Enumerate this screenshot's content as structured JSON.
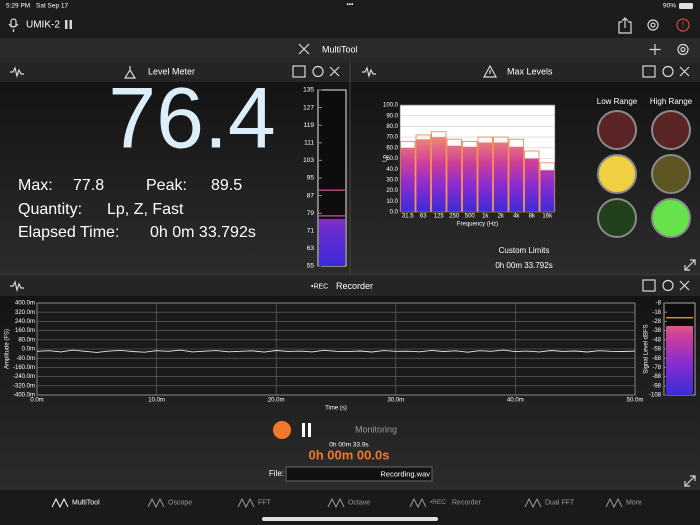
{
  "status_bar": {
    "time": "5:29 PM",
    "date": "Sat Sep 17",
    "battery": "90%"
  },
  "device": {
    "name": "UMIK-2"
  },
  "toolbar": {
    "title": "MultiTool"
  },
  "level_meter": {
    "title": "Level Meter",
    "level": 76.4,
    "max_label": "Max:",
    "max": 77.8,
    "peak_label": "Peak:",
    "peak": 89.5,
    "quantity_label": "Quantity:",
    "quantity": "Lp, Z, Fast",
    "elapsed_label": "Elapsed Time:",
    "elapsed": "0h 0m 33.792s",
    "scale": {
      "ylim": [
        55,
        135
      ],
      "yticks": [
        135,
        127,
        119,
        111,
        103,
        95,
        87,
        79,
        71,
        63,
        55
      ]
    }
  },
  "max_levels": {
    "title": "Max Levels",
    "chart": {
      "type": "bar",
      "y_label": "Lp",
      "x_label": "Frequency (Hz)",
      "categories": [
        "31.5",
        "63",
        "125",
        "250",
        "500",
        "1k",
        "2k",
        "4k",
        "8k",
        "16k"
      ],
      "values": [
        60,
        68,
        70,
        62,
        61,
        65,
        65,
        61,
        50,
        39
      ],
      "max_hold": [
        66,
        72,
        75,
        68,
        66,
        70,
        70,
        68,
        57,
        46
      ],
      "ylim": [
        0,
        100
      ],
      "yticks": [
        {
          "value": 0,
          "label": "0.0"
        },
        {
          "value": 10,
          "label": "10.0"
        },
        {
          "value": 20,
          "label": "20.0"
        },
        {
          "value": 30,
          "label": "30.0"
        },
        {
          "value": 40,
          "label": "40.0"
        },
        {
          "value": 50,
          "label": "50.0"
        },
        {
          "value": 60,
          "label": "60.0"
        },
        {
          "value": 70,
          "label": "70.0"
        },
        {
          "value": 80,
          "label": "80.0"
        },
        {
          "value": 90,
          "label": "90.0"
        },
        {
          "value": 100,
          "label": "100.0"
        }
      ]
    },
    "low_range": "Low Range",
    "high_range": "High Range",
    "custom_limits": "Custom Limits",
    "elapsed": "0h 00m 33.792s"
  },
  "recorder": {
    "rec": "•REC",
    "title": "Recorder",
    "chart": {
      "type": "line",
      "y_label": "Amplitude (FS)",
      "x_label": "Time (s)",
      "x": [
        0,
        1,
        2,
        3,
        4,
        5,
        6,
        7,
        8,
        9,
        10,
        11,
        12,
        13,
        14,
        15,
        16,
        17,
        18,
        19,
        20,
        21,
        22,
        23,
        24,
        25,
        26,
        27,
        28,
        29,
        30,
        31,
        32,
        33,
        34,
        35,
        36,
        37,
        38,
        39,
        40,
        41,
        42,
        43,
        44,
        45,
        46,
        47,
        48,
        49,
        50
      ],
      "values": [
        -0.02,
        -0.015,
        -0.025,
        -0.01,
        -0.02,
        -0.03,
        -0.018,
        -0.012,
        -0.022,
        -0.028,
        -0.015,
        -0.02,
        -0.01,
        -0.025,
        -0.019,
        -0.014,
        -0.024,
        -0.02,
        -0.016,
        -0.027,
        -0.013,
        -0.021,
        -0.018,
        -0.025,
        -0.011,
        -0.02,
        -0.023,
        -0.017,
        -0.026,
        -0.014,
        -0.02,
        -0.019,
        -0.024,
        -0.012,
        -0.022,
        -0.016,
        -0.028,
        -0.015,
        -0.02,
        -0.01,
        -0.023,
        -0.018,
        -0.025,
        -0.013,
        -0.021,
        -0.017,
        -0.026,
        -0.015,
        -0.02,
        -0.022,
        -0.018
      ],
      "color": "#e8e8e8",
      "xlim": [
        0,
        50
      ],
      "xticks": [
        {
          "value": 0,
          "label": "0.0m"
        },
        {
          "value": 10,
          "label": "10.0m"
        },
        {
          "value": 20,
          "label": "20.0m"
        },
        {
          "value": 30,
          "label": "30.0m"
        },
        {
          "value": 40,
          "label": "40.0m"
        },
        {
          "value": 50,
          "label": "50.0m"
        }
      ],
      "ylim": [
        -0.4,
        0.4
      ],
      "yticks": [
        {
          "value": 0.4,
          "label": "400.0m"
        },
        {
          "value": 0.32,
          "label": "320.0m"
        },
        {
          "value": 0.24,
          "label": "240.0m"
        },
        {
          "value": 0.16,
          "label": "160.0m"
        },
        {
          "value": 0.08,
          "label": "80.0m"
        },
        {
          "value": 0,
          "label": "0.0m"
        },
        {
          "value": -0.08,
          "label": "-80.0m"
        },
        {
          "value": -0.16,
          "label": "-160.0m"
        },
        {
          "value": -0.24,
          "label": "-240.0m"
        },
        {
          "value": -0.32,
          "label": "-320.0m"
        },
        {
          "value": -0.4,
          "label": "-400.0m"
        }
      ],
      "grid": true
    },
    "signal_level": {
      "label": "Signal Level dBFS",
      "ylim": [
        -108,
        -8
      ],
      "yticks": [
        -8,
        -18,
        -28,
        -38,
        -48,
        -58,
        -68,
        -78,
        -88,
        -98,
        -108
      ],
      "value": -33,
      "peak": -24
    },
    "monitoring": "Monitoring",
    "recorded": "0h 00m 33.9s",
    "elapsed": "0h 00m 00.0s",
    "file_label": "File:",
    "file_name": "Recording.wav"
  },
  "tab_bar": {
    "tabs": [
      {
        "label": "MultiTool"
      },
      {
        "label": "Oscope"
      },
      {
        "label": "FFT"
      },
      {
        "label": "Octave"
      },
      {
        "prefix": "•REC",
        "label": "Recorder"
      },
      {
        "label": "Dual FFT"
      },
      {
        "label": "More"
      }
    ]
  }
}
